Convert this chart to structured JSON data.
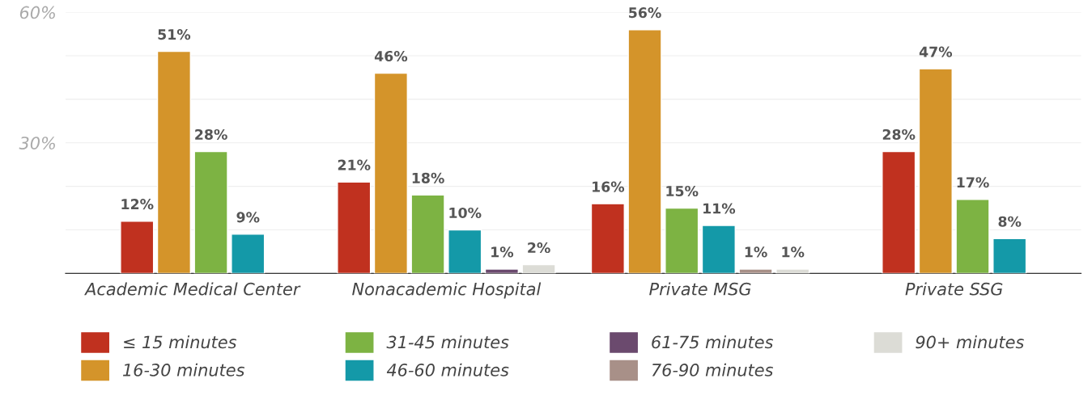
{
  "chart_data": {
    "type": "bar",
    "categories": [
      "Academic Medical Center",
      "Nonacademic Hospital",
      "Private MSG",
      "Private SSG"
    ],
    "series": [
      {
        "name": "≤ 15 minutes",
        "color": "#c0311f",
        "values": [
          12,
          21,
          16,
          28
        ],
        "value_labels": [
          "12%",
          "21%",
          "16%",
          "28%"
        ]
      },
      {
        "name": "16-30 minutes",
        "color": "#d4942a",
        "values": [
          51,
          46,
          56,
          47
        ],
        "value_labels": [
          "51%",
          "46%",
          "56%",
          "47%"
        ]
      },
      {
        "name": "31-45 minutes",
        "color": "#7db343",
        "values": [
          28,
          18,
          15,
          17
        ],
        "value_labels": [
          "28%",
          "18%",
          "15%",
          "17%"
        ]
      },
      {
        "name": "46-60 minutes",
        "color": "#1499a8",
        "values": [
          9,
          10,
          11,
          8
        ],
        "value_labels": [
          "9%",
          "10%",
          "11%",
          "8%"
        ]
      },
      {
        "name": "61-75 minutes",
        "color": "#6b4a6e",
        "values": [
          null,
          1,
          null,
          null
        ],
        "value_labels": [
          null,
          "1%",
          null,
          null
        ]
      },
      {
        "name": "76-90 minutes",
        "color": "#a89088",
        "values": [
          null,
          null,
          1,
          null
        ],
        "value_labels": [
          null,
          null,
          "1%",
          null
        ]
      },
      {
        "name": "90+ minutes",
        "color": "#dcdcd6",
        "values": [
          null,
          2,
          1,
          null
        ],
        "value_labels": [
          null,
          "2%",
          "1%",
          null
        ]
      }
    ],
    "ylim": [
      0,
      60
    ],
    "yticks": [
      {
        "value": 0,
        "label": null
      },
      {
        "value": 10,
        "label": null
      },
      {
        "value": 20,
        "label": null
      },
      {
        "value": 30,
        "label": "30%"
      },
      {
        "value": 40,
        "label": null
      },
      {
        "value": 50,
        "label": null
      },
      {
        "value": 60,
        "label": "60%"
      }
    ],
    "grid": "y",
    "legend": "bottom"
  }
}
